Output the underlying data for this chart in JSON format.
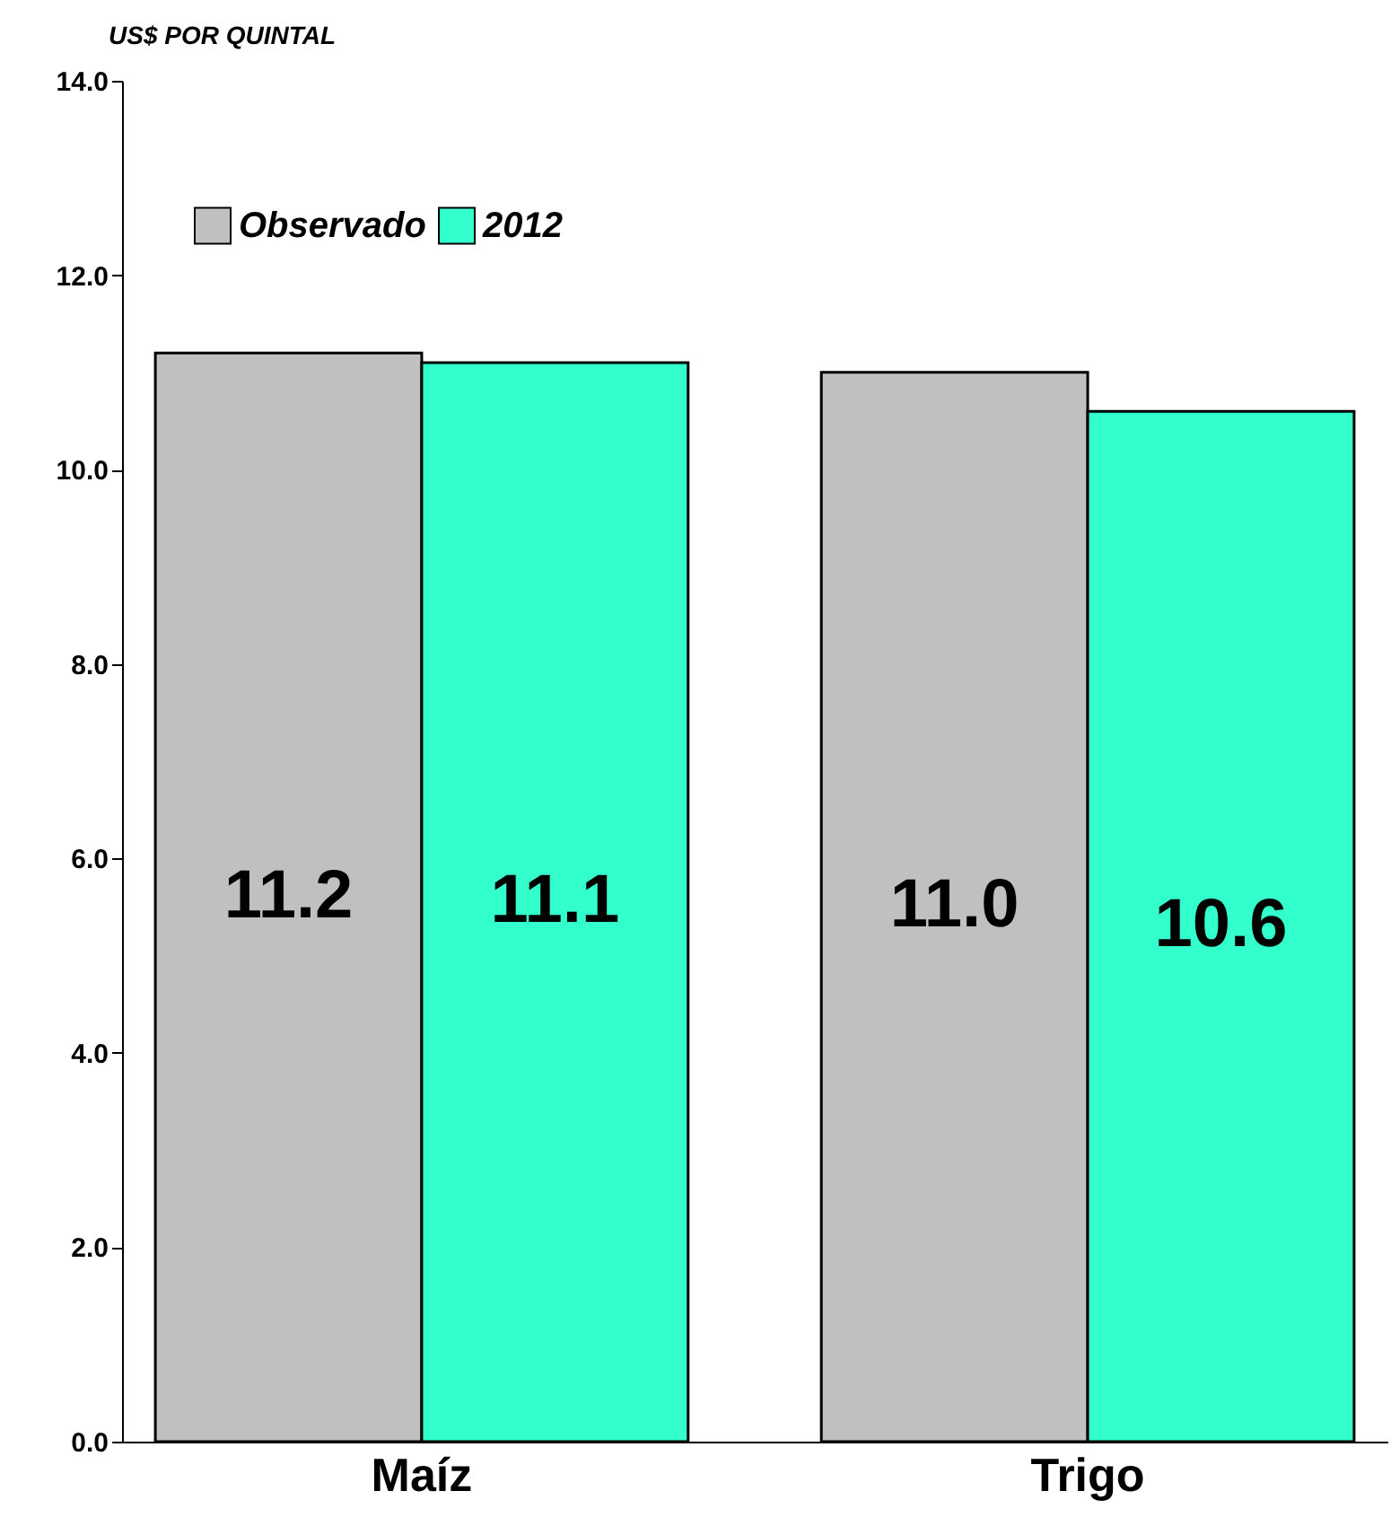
{
  "chart_data": {
    "type": "bar",
    "ylabel": "US$ POR QUINTAL",
    "categories": [
      "Maíz",
      "Trigo"
    ],
    "series": [
      {
        "name": "Observado",
        "color": "#c0c0c0",
        "values": [
          11.2,
          11.0
        ],
        "value_labels": [
          "11.2",
          "11.0"
        ]
      },
      {
        "name": "2012",
        "color": "#33ffcc",
        "values": [
          11.1,
          10.6
        ],
        "value_labels": [
          "11.1",
          "10.6"
        ]
      }
    ],
    "ylim": [
      0,
      14
    ],
    "yticks": [
      {
        "value": 0,
        "label": "0.0"
      },
      {
        "value": 2,
        "label": "2.0"
      },
      {
        "value": 4,
        "label": "4.0"
      },
      {
        "value": 6,
        "label": "6.0"
      },
      {
        "value": 8,
        "label": "8.0"
      },
      {
        "value": 10,
        "label": "10.0"
      },
      {
        "value": 12,
        "label": "12.0"
      },
      {
        "value": 14,
        "label": "14.0"
      }
    ],
    "grid": false,
    "legend": "top left"
  }
}
